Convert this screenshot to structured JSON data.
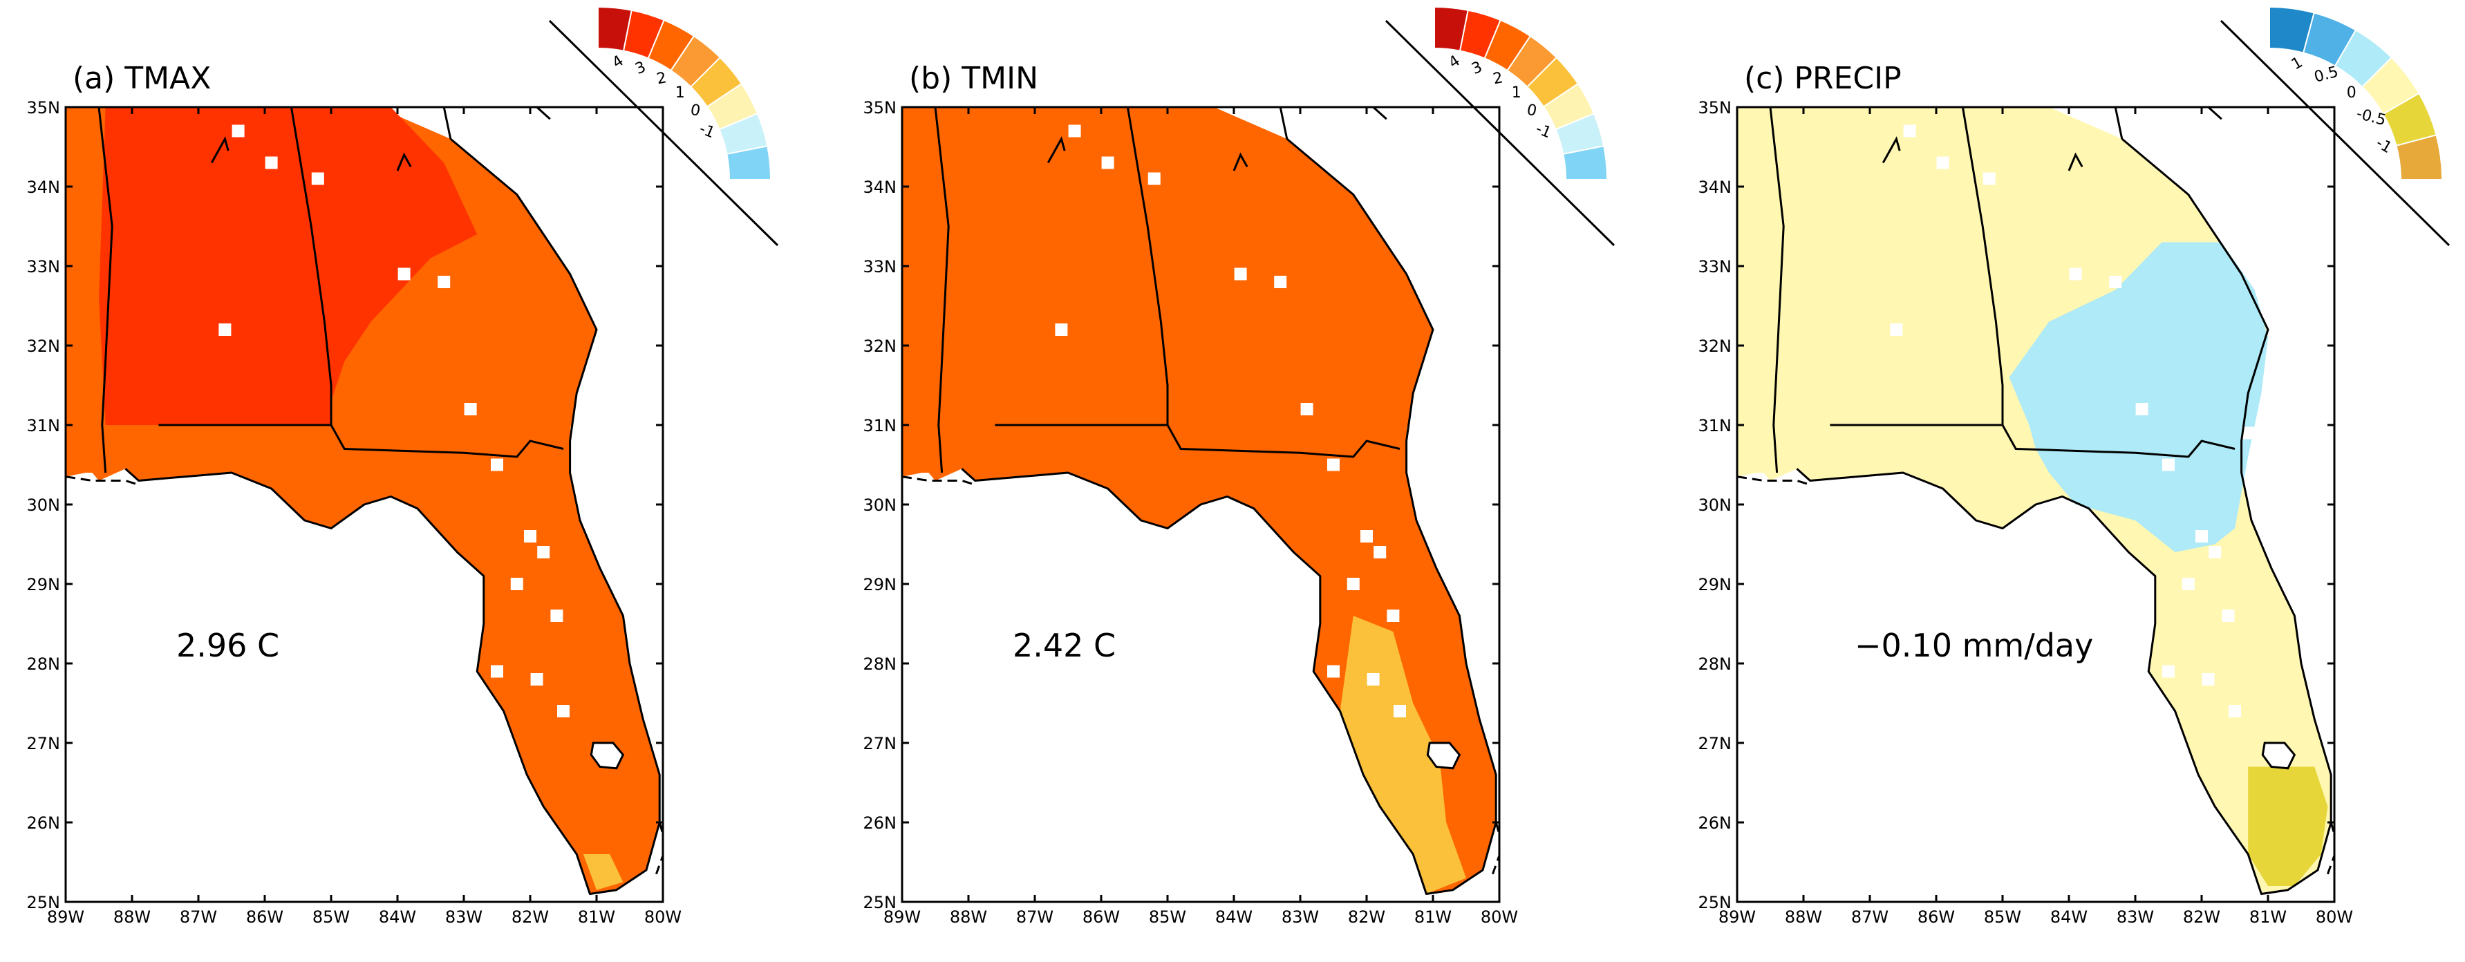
{
  "figure": {
    "panels": [
      {
        "id": "a",
        "title": "(a) TMAX",
        "mean_label": "2.96 C",
        "main_color": "#ff6600",
        "secondary_color": "#ff3300",
        "accent_color": "#fbc13a",
        "legend": {
          "colors": [
            "#c8100a",
            "#ff3300",
            "#ff6600",
            "#fb9a33",
            "#fbc13a",
            "#fff3b2",
            "#c9f1f9",
            "#80d4f6"
          ],
          "labels": [
            "4",
            "3",
            "2",
            "1",
            "0",
            "-1"
          ]
        }
      },
      {
        "id": "b",
        "title": "(b) TMIN",
        "mean_label": "2.42 C",
        "main_color": "#ff6600",
        "secondary_color": "#ff6600",
        "accent_color": "#fbc13a",
        "legend": {
          "colors": [
            "#c8100a",
            "#ff3300",
            "#ff6600",
            "#fb9a33",
            "#fbc13a",
            "#fff3b2",
            "#c9f1f9",
            "#80d4f6"
          ],
          "labels": [
            "4",
            "3",
            "2",
            "1",
            "0",
            "-1"
          ]
        }
      },
      {
        "id": "c",
        "title": "(c) PRECIP",
        "mean_label": "−0.10 mm/day",
        "main_color": "#fff7b2",
        "secondary_color": "#aeeaf7",
        "accent_color": "#e6d63a",
        "legend": {
          "colors": [
            "#1e88c8",
            "#4fb1e6",
            "#aeeaf7",
            "#fff7b2",
            "#e6d63a",
            "#e6a93a"
          ],
          "labels": [
            "1",
            "0.5",
            "0",
            "-0.5",
            "-1"
          ]
        }
      }
    ],
    "lat_ticks": [
      "25N",
      "26N",
      "27N",
      "28N",
      "29N",
      "30N",
      "31N",
      "32N",
      "33N",
      "34N",
      "35N"
    ],
    "lon_ticks": [
      "89W",
      "88W",
      "87W",
      "86W",
      "85W",
      "84W",
      "83W",
      "82W",
      "81W",
      "80W"
    ]
  }
}
